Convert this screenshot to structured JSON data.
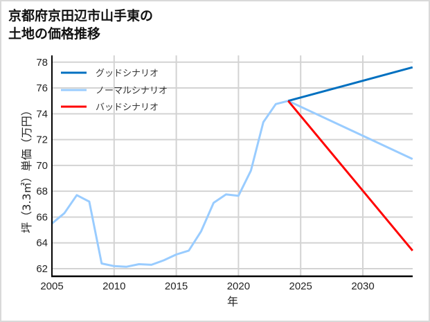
{
  "chart_data": {
    "type": "line",
    "title": "京都府京田辺市山手東の\n土地の価格推移",
    "xlabel": "年",
    "ylabel": "坪（3.3㎡）単価（万円）",
    "xlim": [
      2005,
      2034
    ],
    "ylim": [
      61.4,
      78.3
    ],
    "x_ticks": [
      2005,
      2010,
      2015,
      2020,
      2025,
      2030
    ],
    "y_ticks": [
      62,
      64,
      66,
      68,
      70,
      72,
      74,
      76,
      78
    ],
    "grid": true,
    "legend_position": "upper left",
    "series": [
      {
        "name": "グッドシナリオ",
        "color": "#0070c0",
        "x": [
          2024,
          2034
        ],
        "values": [
          75.0,
          77.6
        ]
      },
      {
        "name": "ノーマルシナリオ",
        "color": "#99ccff",
        "x": [
          2005,
          2006,
          2007,
          2008,
          2009,
          2010,
          2011,
          2012,
          2013,
          2014,
          2015,
          2016,
          2017,
          2018,
          2019,
          2020,
          2021,
          2022,
          2023,
          2024,
          2034
        ],
        "values": [
          65.5,
          66.3,
          67.7,
          67.2,
          62.4,
          62.2,
          62.15,
          62.35,
          62.3,
          62.65,
          63.1,
          63.4,
          64.9,
          67.1,
          67.75,
          67.65,
          69.6,
          73.35,
          74.75,
          75.0,
          70.5
        ]
      },
      {
        "name": "バッドシナリオ",
        "color": "#ff0000",
        "x": [
          2024,
          2034
        ],
        "values": [
          75.0,
          63.4
        ]
      }
    ]
  }
}
